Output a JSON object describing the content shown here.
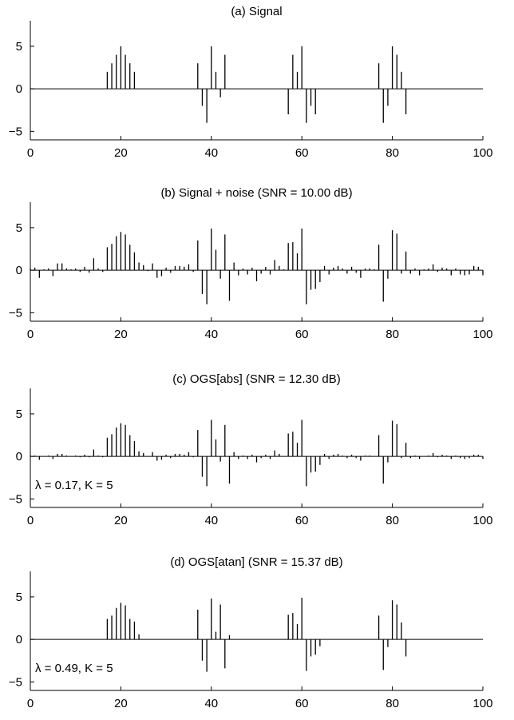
{
  "chart_data": [
    {
      "type": "bar",
      "title": "(a) Signal",
      "annotation": "",
      "xlim": [
        0,
        100
      ],
      "ylim": [
        -6,
        8
      ],
      "xticks": [
        0,
        20,
        40,
        60,
        80,
        100
      ],
      "yticks": [
        -5,
        0,
        5
      ],
      "ytick_labels": [
        "−5",
        "0",
        "5"
      ],
      "grid": false,
      "x": [
        17,
        18,
        19,
        20,
        21,
        22,
        23,
        37,
        38,
        39,
        40,
        41,
        42,
        43,
        57,
        58,
        59,
        60,
        61,
        62,
        63,
        77,
        78,
        79,
        80,
        81,
        82,
        83
      ],
      "values": [
        2,
        3,
        4,
        5,
        4,
        3,
        2,
        3,
        -2,
        -4,
        5,
        2,
        -1,
        4,
        -3,
        4,
        2,
        5,
        -4,
        -2,
        -3,
        3,
        -4,
        -2,
        5,
        4,
        2,
        -3
      ]
    },
    {
      "type": "bar",
      "title": "(b) Signal + noise (SNR = 10.00 dB)",
      "annotation": "",
      "xlim": [
        0,
        100
      ],
      "ylim": [
        -6,
        8
      ],
      "xticks": [
        0,
        20,
        40,
        60,
        80,
        100
      ],
      "yticks": [
        -5,
        0,
        5
      ],
      "ytick_labels": [
        "−5",
        "0",
        "5"
      ],
      "grid": false,
      "x": [
        0,
        1,
        2,
        3,
        4,
        5,
        6,
        7,
        8,
        9,
        10,
        11,
        12,
        13,
        14,
        15,
        16,
        17,
        18,
        19,
        20,
        21,
        22,
        23,
        24,
        25,
        26,
        27,
        28,
        29,
        30,
        31,
        32,
        33,
        34,
        35,
        36,
        37,
        38,
        39,
        40,
        41,
        42,
        43,
        44,
        45,
        46,
        47,
        48,
        49,
        50,
        51,
        52,
        53,
        54,
        55,
        56,
        57,
        58,
        59,
        60,
        61,
        62,
        63,
        64,
        65,
        66,
        67,
        68,
        69,
        70,
        71,
        72,
        73,
        74,
        75,
        76,
        77,
        78,
        79,
        80,
        81,
        82,
        83,
        84,
        85,
        86,
        87,
        88,
        89,
        90,
        91,
        92,
        93,
        94,
        95,
        96,
        97,
        98,
        99,
        100
      ],
      "values": [
        0.2,
        0.3,
        -0.9,
        0.1,
        0.2,
        -0.7,
        0.8,
        0.8,
        0.2,
        0.1,
        0.2,
        -0.2,
        0.4,
        -0.3,
        1.4,
        0.2,
        -0.2,
        2.7,
        3.1,
        4.0,
        4.5,
        4.2,
        3.0,
        2.1,
        0.9,
        0.6,
        -0.1,
        0.8,
        -0.9,
        -0.7,
        0.3,
        -0.3,
        0.5,
        0.5,
        0.4,
        0.7,
        -0.2,
        3.5,
        -2.8,
        -4.0,
        4.9,
        2.4,
        -1.0,
        4.2,
        -3.6,
        0.9,
        -0.6,
        0.2,
        -0.5,
        0.3,
        -1.3,
        -0.4,
        0.4,
        -0.5,
        1.2,
        0.5,
        0.1,
        3.2,
        3.3,
        2.0,
        4.9,
        -4.0,
        -2.3,
        -2.2,
        -1.4,
        0.5,
        -0.5,
        0.3,
        0.5,
        0.2,
        -0.4,
        0.4,
        -0.3,
        -0.9,
        0.2,
        0.2,
        0.1,
        3.0,
        -3.7,
        -1.0,
        4.7,
        4.3,
        -0.4,
        2.2,
        -0.4,
        0.2,
        -0.6,
        0.1,
        0.2,
        0.7,
        -0.2,
        0.3,
        0.2,
        -0.6,
        0.2,
        -0.5,
        -0.6,
        -0.5,
        0.5,
        0.4,
        -0.6
      ]
    },
    {
      "type": "bar",
      "title": "(c) OGS[abs] (SNR = 12.30 dB)",
      "annotation": "λ = 0.17, K = 5",
      "xlim": [
        0,
        100
      ],
      "ylim": [
        -6,
        8
      ],
      "xticks": [
        0,
        20,
        40,
        60,
        80,
        100
      ],
      "yticks": [
        -5,
        0,
        5
      ],
      "ytick_labels": [
        "−5",
        "0",
        "5"
      ],
      "grid": false,
      "x": [
        0,
        1,
        2,
        3,
        4,
        5,
        6,
        7,
        8,
        9,
        10,
        11,
        12,
        13,
        14,
        15,
        16,
        17,
        18,
        19,
        20,
        21,
        22,
        23,
        24,
        25,
        26,
        27,
        28,
        29,
        30,
        31,
        32,
        33,
        34,
        35,
        36,
        37,
        38,
        39,
        40,
        41,
        42,
        43,
        44,
        45,
        46,
        47,
        48,
        49,
        50,
        51,
        52,
        53,
        54,
        55,
        56,
        57,
        58,
        59,
        60,
        61,
        62,
        63,
        64,
        65,
        66,
        67,
        68,
        69,
        70,
        71,
        72,
        73,
        74,
        75,
        76,
        77,
        78,
        79,
        80,
        81,
        82,
        83,
        84,
        85,
        86,
        87,
        88,
        89,
        90,
        91,
        92,
        93,
        94,
        95,
        96,
        97,
        98,
        99,
        100
      ],
      "values": [
        0.1,
        0.1,
        -0.4,
        0.0,
        0.1,
        -0.3,
        0.3,
        0.3,
        0.1,
        0.0,
        0.1,
        -0.1,
        0.2,
        -0.1,
        0.8,
        0.1,
        -0.1,
        2.2,
        2.6,
        3.4,
        3.9,
        3.7,
        2.5,
        1.8,
        0.6,
        0.4,
        0.0,
        0.5,
        -0.5,
        -0.4,
        0.2,
        -0.2,
        0.3,
        0.3,
        0.2,
        0.5,
        -0.1,
        3.1,
        -2.4,
        -3.5,
        4.3,
        2.0,
        -0.6,
        3.7,
        -3.2,
        0.5,
        -0.3,
        0.1,
        -0.3,
        0.2,
        -0.7,
        -0.2,
        0.2,
        -0.3,
        0.7,
        0.3,
        0.0,
        2.7,
        2.9,
        1.6,
        4.3,
        -3.5,
        -1.9,
        -1.8,
        -1.0,
        0.3,
        -0.3,
        0.2,
        0.3,
        0.1,
        -0.2,
        0.2,
        -0.2,
        -0.5,
        0.1,
        0.1,
        0.0,
        2.5,
        -3.2,
        -0.7,
        4.2,
        3.8,
        -0.2,
        1.6,
        -0.2,
        0.1,
        -0.3,
        0.0,
        0.1,
        0.4,
        -0.1,
        0.2,
        0.1,
        -0.3,
        0.1,
        -0.2,
        -0.3,
        -0.2,
        0.2,
        0.2,
        -0.3
      ]
    },
    {
      "type": "bar",
      "title": "(d) OGS[atan] (SNR = 15.37 dB)",
      "annotation": "λ = 0.49, K = 5",
      "xlim": [
        0,
        100
      ],
      "ylim": [
        -6,
        8
      ],
      "xticks": [
        0,
        20,
        40,
        60,
        80,
        100
      ],
      "yticks": [
        -5,
        0,
        5
      ],
      "ytick_labels": [
        "−5",
        "0",
        "5"
      ],
      "grid": false,
      "x": [
        17,
        18,
        19,
        20,
        21,
        22,
        23,
        24,
        37,
        38,
        39,
        40,
        41,
        42,
        43,
        44,
        57,
        58,
        59,
        60,
        61,
        62,
        63,
        64,
        77,
        78,
        79,
        80,
        81,
        82,
        83
      ],
      "values": [
        2.4,
        2.8,
        3.7,
        4.3,
        4.0,
        2.4,
        2.1,
        0.6,
        3.5,
        -2.5,
        -3.8,
        4.8,
        0.9,
        4.1,
        -3.4,
        0.5,
        2.9,
        3.1,
        1.8,
        4.9,
        -3.7,
        -2.0,
        -1.8,
        -0.8,
        2.8,
        -3.6,
        -0.9,
        4.6,
        4.1,
        2.0,
        -2.0
      ]
    }
  ]
}
